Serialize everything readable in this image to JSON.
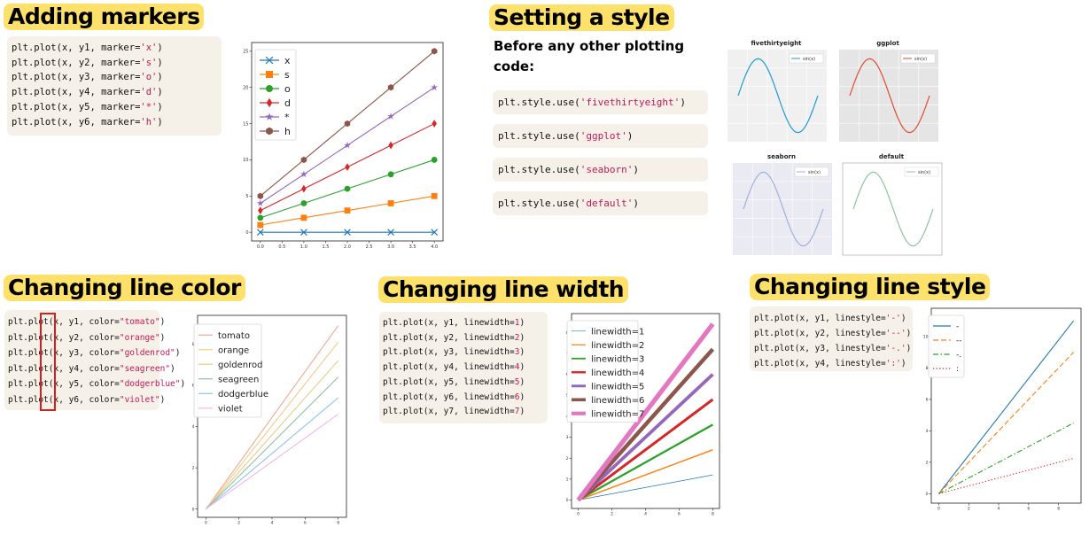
{
  "sections": {
    "markers": {
      "title": "Adding markers",
      "code": [
        {
          "pre": "plt.plot(x, y1, marker=",
          "arg": "'x'",
          "post": ")"
        },
        {
          "pre": "plt.plot(x, y2, marker=",
          "arg": "'s'",
          "post": ")"
        },
        {
          "pre": "plt.plot(x, y3, marker=",
          "arg": "'o'",
          "post": ")"
        },
        {
          "pre": "plt.plot(x, y4, marker=",
          "arg": "'d'",
          "post": ")"
        },
        {
          "pre": "plt.plot(x, y5, marker=",
          "arg": "'*'",
          "post": ")"
        },
        {
          "pre": "plt.plot(x, y6, marker=",
          "arg": "'h'",
          "post": ")"
        }
      ]
    },
    "style": {
      "title": "Setting a style",
      "intro_line1": "Before any other plotting",
      "intro_line2": "code:",
      "code": [
        {
          "pre": "plt.style.use(",
          "arg": "'fivethirtyeight'",
          "post": ")"
        },
        {
          "pre": "plt.style.use(",
          "arg": "'ggplot'",
          "post": ")"
        },
        {
          "pre": "plt.style.use(",
          "arg": "'seaborn'",
          "post": ")"
        },
        {
          "pre": "plt.style.use(",
          "arg": "'default'",
          "post": ")"
        }
      ],
      "thumbs": [
        {
          "title": "fivethirtyeight",
          "legend": "sin(x)",
          "color": "#1f9ad6",
          "bg": "#f0f0f0"
        },
        {
          "title": "ggplot",
          "legend": "sin(x)",
          "color": "#e24a33",
          "bg": "#e5e5e5"
        },
        {
          "title": "seaborn",
          "legend": "sin(x)",
          "color": "#9db2e0",
          "bg": "#eaeaf2"
        },
        {
          "title": "default",
          "legend": "sin(x)",
          "color": "#8fc3a0",
          "bg": "#ffffff"
        }
      ]
    },
    "color": {
      "title": "Changing line color",
      "code": [
        {
          "pre": "plt.plot(x, y1, color=",
          "arg": "\"tomato\"",
          "post": ")"
        },
        {
          "pre": "plt.plot(x, y2, color=",
          "arg": "\"orange\"",
          "post": ")"
        },
        {
          "pre": "plt.plot(x, y3, color=",
          "arg": "\"goldenrod\"",
          "post": ")"
        },
        {
          "pre": "plt.plot(x, y4, color=",
          "arg": "\"seagreen\"",
          "post": ")"
        },
        {
          "pre": "plt.plot(x, y5, color=",
          "arg": "\"dodgerblue\"",
          "post": ")"
        },
        {
          "pre": "plt.plot(x, y6, color=",
          "arg": "\"violet\"",
          "post": ")"
        }
      ]
    },
    "width": {
      "title": "Changing line width",
      "code": [
        {
          "pre": "plt.plot(x, y1, linewidth=",
          "arg": "1",
          "post": ")"
        },
        {
          "pre": "plt.plot(x, y2, linewidth=",
          "arg": "2",
          "post": ")"
        },
        {
          "pre": "plt.plot(x, y3, linewidth=",
          "arg": "3",
          "post": ")"
        },
        {
          "pre": "plt.plot(x, y4, linewidth=",
          "arg": "4",
          "post": ")"
        },
        {
          "pre": "plt.plot(x, y5, linewidth=",
          "arg": "5",
          "post": ")"
        },
        {
          "pre": "plt.plot(x, y6, linewidth=",
          "arg": "6",
          "post": ")"
        },
        {
          "pre": "plt.plot(x, y7, linewidth=",
          "arg": "7",
          "post": ")"
        }
      ]
    },
    "linestyle": {
      "title": "Changing line style",
      "code": [
        {
          "pre": "plt.plot(x, y1, linestyle=",
          "arg": "'-'",
          "post": ")"
        },
        {
          "pre": "plt.plot(x, y2, linestyle=",
          "arg": "'--'",
          "post": ")"
        },
        {
          "pre": "plt.plot(x, y3, linestyle=",
          "arg": "'-.'",
          "post": ")"
        },
        {
          "pre": "plt.plot(x, y4, linestyle=",
          "arg": "':'",
          "post": ")"
        }
      ]
    }
  },
  "chart_data": [
    {
      "id": "markers",
      "type": "line",
      "x": [
        0.0,
        1.0,
        2.0,
        3.0,
        4.0
      ],
      "x_ticks": [
        "0.0",
        "0.5",
        "1.0",
        "1.5",
        "2.0",
        "2.5",
        "3.0",
        "3.5",
        "4.0"
      ],
      "y_ticks": [
        "0",
        "5",
        "10",
        "15",
        "20",
        "25"
      ],
      "xlim": [
        -0.2,
        4.2
      ],
      "ylim": [
        -1.2,
        26.2
      ],
      "legend_position": "upper-left",
      "series": [
        {
          "name": "x",
          "marker": "x",
          "color": "#1f77b4",
          "values": [
            0,
            0,
            0,
            0,
            0
          ]
        },
        {
          "name": "s",
          "marker": "s",
          "color": "#ff7f0e",
          "values": [
            1,
            2,
            3,
            4,
            5
          ]
        },
        {
          "name": "o",
          "marker": "o",
          "color": "#2ca02c",
          "values": [
            2,
            4,
            6,
            8,
            10
          ]
        },
        {
          "name": "d",
          "marker": "d",
          "color": "#d62728",
          "values": [
            3,
            6,
            9,
            12,
            15
          ]
        },
        {
          "name": "*",
          "marker": "*",
          "color": "#9467bd",
          "values": [
            4,
            8,
            12,
            16,
            20
          ]
        },
        {
          "name": "h",
          "marker": "h",
          "color": "#8c564b",
          "values": [
            5,
            10,
            15,
            20,
            25
          ]
        }
      ]
    },
    {
      "id": "color",
      "type": "line",
      "x": [
        0,
        8
      ],
      "x_ticks": [
        "0",
        "2",
        "4",
        "6",
        "8"
      ],
      "y_ticks": [
        "0",
        "2",
        "4",
        "6",
        "8"
      ],
      "xlim": [
        -0.5,
        8.5
      ],
      "ylim": [
        -0.4,
        9.4
      ],
      "legend_position": "upper-left",
      "series": [
        {
          "name": "tomato",
          "color": "#f2a896",
          "values": [
            0,
            8.9
          ]
        },
        {
          "name": "orange",
          "color": "#f7cb8a",
          "values": [
            0,
            8.1
          ]
        },
        {
          "name": "goldenrod",
          "color": "#e6cd85",
          "values": [
            0,
            7.2
          ]
        },
        {
          "name": "seagreen",
          "color": "#8fc3a0",
          "values": [
            0,
            6.4
          ]
        },
        {
          "name": "dodgerblue",
          "color": "#8ec2f0",
          "values": [
            0,
            5.4
          ]
        },
        {
          "name": "violet",
          "color": "#f2b7ef",
          "values": [
            0,
            4.6
          ]
        }
      ]
    },
    {
      "id": "width",
      "type": "line",
      "x": [
        0,
        8
      ],
      "x_ticks": [
        "0",
        "2",
        "4",
        "6",
        "8"
      ],
      "y_ticks": [
        "0",
        "1",
        "2",
        "3",
        "4",
        "5",
        "6",
        "7",
        "8"
      ],
      "xlim": [
        -0.4,
        8.4
      ],
      "ylim": [
        -0.4,
        8.9
      ],
      "legend_position": "upper-left",
      "series": [
        {
          "name": "linewidth=1",
          "width": 1,
          "color": "#1f77b4",
          "values": [
            0,
            1.2
          ]
        },
        {
          "name": "linewidth=2",
          "width": 2,
          "color": "#ff7f0e",
          "values": [
            0,
            2.4
          ]
        },
        {
          "name": "linewidth=3",
          "width": 3,
          "color": "#2ca02c",
          "values": [
            0,
            3.6
          ]
        },
        {
          "name": "linewidth=4",
          "width": 4,
          "color": "#d62728",
          "values": [
            0,
            4.8
          ]
        },
        {
          "name": "linewidth=5",
          "width": 5,
          "color": "#9467bd",
          "values": [
            0,
            6.0
          ]
        },
        {
          "name": "linewidth=6",
          "width": 6,
          "color": "#8c564b",
          "values": [
            0,
            7.2
          ]
        },
        {
          "name": "linewidth=7",
          "width": 7,
          "color": "#e377c2",
          "values": [
            0,
            8.4
          ]
        }
      ]
    },
    {
      "id": "linestyle",
      "type": "line",
      "x": [
        0,
        9
      ],
      "x_ticks": [
        "0",
        "2",
        "4",
        "6",
        "8"
      ],
      "y_ticks": [
        "0",
        "2",
        "4",
        "6",
        "8",
        "10"
      ],
      "xlim": [
        -0.5,
        9.5
      ],
      "ylim": [
        -0.6,
        11.8
      ],
      "legend_position": "upper-left",
      "series": [
        {
          "name": "-",
          "dash": "solid",
          "color": "#1f77b4",
          "values": [
            0,
            11.0
          ]
        },
        {
          "name": "--",
          "dash": "dashed",
          "color": "#ff7f0e",
          "values": [
            0,
            9.0
          ]
        },
        {
          "name": "-.",
          "dash": "dashdot",
          "color": "#2ca02c",
          "values": [
            0,
            4.5
          ]
        },
        {
          "name": ":",
          "dash": "dotted",
          "color": "#d62728",
          "values": [
            0,
            2.25
          ]
        }
      ]
    }
  ]
}
